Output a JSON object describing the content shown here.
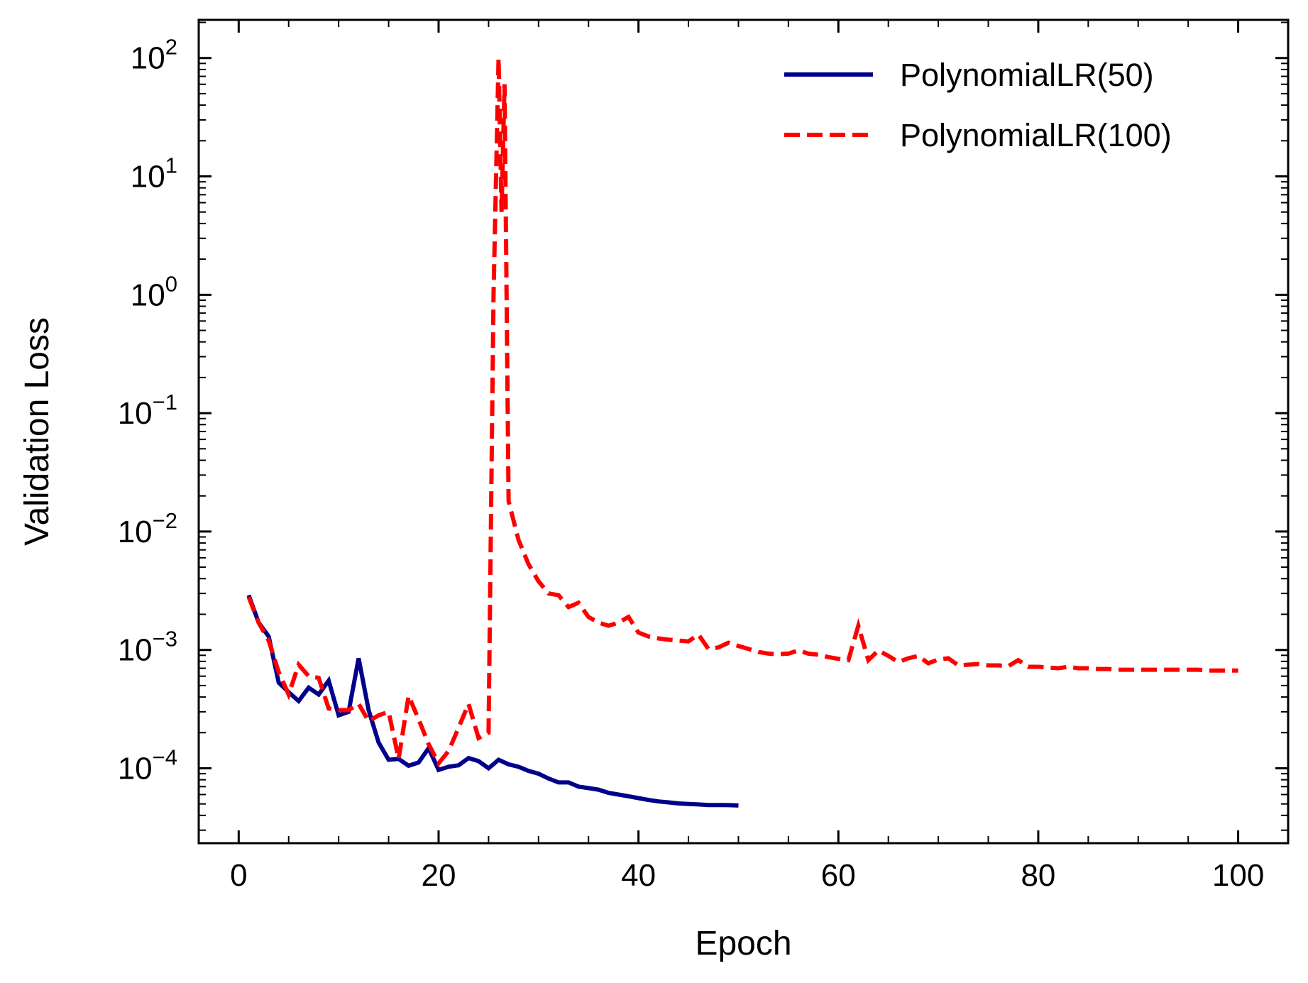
{
  "chart_data": {
    "type": "line",
    "xlabel": "Epoch",
    "ylabel": "Validation Loss",
    "yscale": "log",
    "xlim": [
      -4,
      105
    ],
    "ylim": [
      2.33e-05,
      210
    ],
    "xticks": [
      0,
      20,
      40,
      60,
      80,
      100
    ],
    "yticks": [
      {
        "value": 0.0001,
        "base": "10",
        "exp": "−4"
      },
      {
        "value": 0.001,
        "base": "10",
        "exp": "−3"
      },
      {
        "value": 0.01,
        "base": "10",
        "exp": "−2"
      },
      {
        "value": 0.1,
        "base": "10",
        "exp": "−1"
      },
      {
        "value": 1,
        "base": "10",
        "exp": "0"
      },
      {
        "value": 10,
        "base": "10",
        "exp": "1"
      },
      {
        "value": 100,
        "base": "10",
        "exp": "2"
      }
    ],
    "legend_position": "top-right",
    "grid": false,
    "series": [
      {
        "name": "PolynomialLR(50)",
        "color": "#00008b",
        "style": "solid",
        "x": [
          1,
          2,
          3,
          4,
          5,
          6,
          7,
          8,
          9,
          10,
          11,
          12,
          13,
          14,
          15,
          16,
          17,
          18,
          19,
          20,
          21,
          22,
          23,
          24,
          25,
          26,
          27,
          28,
          29,
          30,
          31,
          32,
          33,
          34,
          35,
          36,
          37,
          38,
          39,
          40,
          41,
          42,
          43,
          44,
          45,
          46,
          47,
          48,
          49,
          50
        ],
        "y": [
          0.0029,
          0.0017,
          0.0013,
          0.00053,
          0.00044,
          0.00037,
          0.00048,
          0.00042,
          0.00055,
          0.00028,
          0.0003,
          0.00085,
          0.00031,
          0.000165,
          0.000118,
          0.00012,
          0.000105,
          0.000112,
          0.000148,
          9.7e-05,
          0.000103,
          0.000106,
          0.000122,
          0.000115,
          0.0001,
          0.000118,
          0.000108,
          0.000103,
          9.5e-05,
          9e-05,
          8.2e-05,
          7.6e-05,
          7.6e-05,
          7e-05,
          6.8e-05,
          6.6e-05,
          6.2e-05,
          6e-05,
          5.8e-05,
          5.6e-05,
          5.4e-05,
          5.25e-05,
          5.15e-05,
          5.05e-05,
          5e-05,
          4.95e-05,
          4.9e-05,
          4.9e-05,
          4.88e-05,
          4.85e-05
        ]
      },
      {
        "name": "PolynomialLR(100)",
        "color": "#ff0000",
        "style": "dashed",
        "x": [
          1,
          2,
          3,
          4,
          5,
          6,
          7,
          8,
          9,
          10,
          11,
          12,
          13,
          14,
          15,
          16,
          17,
          18,
          19,
          20,
          21,
          22,
          23,
          24,
          25,
          25.5,
          26,
          26.3,
          26.6,
          27,
          28,
          29,
          30,
          31,
          32,
          33,
          34,
          35,
          36,
          37,
          38,
          39,
          40,
          41,
          42,
          43,
          44,
          45,
          46,
          47,
          48,
          49,
          50,
          51,
          52,
          53,
          54,
          55,
          56,
          57,
          58,
          59,
          60,
          61,
          62,
          63,
          64,
          65,
          66,
          67,
          68,
          69,
          70,
          71,
          72,
          73,
          74,
          75,
          76,
          77,
          78,
          79,
          80,
          81,
          82,
          83,
          84,
          85,
          86,
          87,
          88,
          89,
          90,
          91,
          92,
          93,
          94,
          95,
          96,
          97,
          98,
          99,
          100
        ],
        "y": [
          0.0028,
          0.0017,
          0.0012,
          0.00065,
          0.00042,
          0.00075,
          0.0006,
          0.00058,
          0.00032,
          0.00031,
          0.00031,
          0.00035,
          0.00025,
          0.00028,
          0.0003,
          0.00012,
          0.00041,
          0.00026,
          0.00016,
          0.00011,
          0.00014,
          0.00022,
          0.00035,
          0.00018,
          0.0002,
          1.0,
          100,
          5,
          60,
          0.018,
          0.0085,
          0.0053,
          0.0038,
          0.003,
          0.0029,
          0.0023,
          0.0025,
          0.0019,
          0.0017,
          0.0016,
          0.0017,
          0.0019,
          0.0014,
          0.0013,
          0.00125,
          0.00122,
          0.0012,
          0.00118,
          0.00135,
          0.00102,
          0.00105,
          0.00115,
          0.00108,
          0.00102,
          0.00096,
          0.00093,
          0.00092,
          0.00093,
          0.00099,
          0.00093,
          0.00091,
          0.00087,
          0.00084,
          0.00082,
          0.0016,
          0.00082,
          0.00099,
          0.00089,
          0.00079,
          0.00085,
          0.00089,
          0.00077,
          0.00083,
          0.00085,
          0.00074,
          0.00075,
          0.00076,
          0.00074,
          0.00074,
          0.00073,
          0.00082,
          0.00072,
          0.00072,
          0.00071,
          0.0007,
          0.00072,
          0.0007,
          0.0007,
          0.00069,
          0.00069,
          0.00068,
          0.00068,
          0.00068,
          0.00068,
          0.00068,
          0.00068,
          0.00068,
          0.00068,
          0.00068,
          0.00067,
          0.00067,
          0.00067,
          0.00067
        ]
      }
    ]
  }
}
